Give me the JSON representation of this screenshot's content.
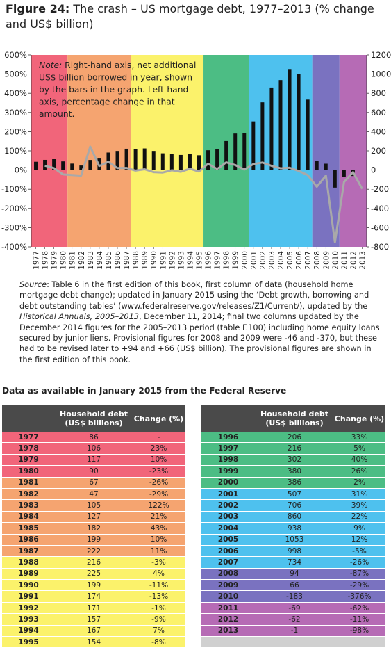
{
  "figure": {
    "label": "Figure 24:",
    "title": "The crash – US mortgage debt, 1977–2013 (% change and US$ billion)"
  },
  "chart_data": {
    "type": "bar+line",
    "categories": [
      "1977",
      "1978",
      "1979",
      "1980",
      "1981",
      "1982",
      "1983",
      "1984",
      "1985",
      "1986",
      "1987",
      "1988",
      "1989",
      "1990",
      "1991",
      "1992",
      "1993",
      "1994",
      "1995",
      "1996",
      "1997",
      "1998",
      "1999",
      "2000",
      "2001",
      "2002",
      "2003",
      "2004",
      "2005",
      "2006",
      "2007",
      "2008",
      "2009",
      "2010",
      "2011",
      "2012",
      "2013"
    ],
    "series": [
      {
        "axis": "right",
        "type": "bar",
        "color": "#111111",
        "values": [
          86,
          106,
          117,
          90,
          67,
          47,
          105,
          127,
          182,
          199,
          222,
          216,
          225,
          199,
          174,
          171,
          157,
          167,
          154,
          206,
          216,
          302,
          380,
          386,
          507,
          706,
          860,
          938,
          1053,
          998,
          734,
          94,
          66,
          -183,
          -69,
          -62,
          -1
        ]
      },
      {
        "axis": "left",
        "type": "line",
        "color": "#a9a9a9",
        "values": [
          null,
          23,
          10,
          -23,
          -26,
          -29,
          122,
          21,
          43,
          10,
          11,
          -3,
          4,
          -11,
          -13,
          -1,
          -9,
          7,
          -8,
          33,
          5,
          40,
          26,
          2,
          31,
          39,
          22,
          9,
          12,
          -5,
          -26,
          -87,
          -29,
          -376,
          -62,
          -11,
          -98
        ]
      }
    ],
    "left_axis": {
      "ylim": [
        -400,
        600
      ],
      "ticks": [
        600,
        500,
        400,
        300,
        200,
        100,
        0,
        -100,
        -200,
        -300,
        -400
      ],
      "tick_labels": [
        "600%",
        "500%",
        "400%",
        "300%",
        "200%",
        "100%",
        "0%",
        "-100%",
        "-200%",
        "-300%",
        "-400%"
      ]
    },
    "right_axis": {
      "ylim": [
        -800,
        1200
      ],
      "ticks": [
        1200,
        1000,
        800,
        600,
        400,
        200,
        0,
        -200,
        -400,
        -600,
        -800
      ],
      "tick_labels": [
        "1200",
        "1000",
        "800",
        "600",
        "400",
        "200",
        "0",
        "-200",
        "-400",
        "-600",
        "-800"
      ]
    },
    "bands": [
      {
        "from": "1977",
        "to": "1980",
        "color": "#f1657a"
      },
      {
        "from": "1981",
        "to": "1987",
        "color": "#f5a470"
      },
      {
        "from": "1988",
        "to": "1995",
        "color": "#fbf26b"
      },
      {
        "from": "1996",
        "to": "2000",
        "color": "#4cbd84"
      },
      {
        "from": "2001",
        "to": "2007",
        "color": "#4ec1ee"
      },
      {
        "from": "2008",
        "to": "2010",
        "color": "#7a72c0"
      },
      {
        "from": "2011",
        "to": "2013",
        "color": "#b66bb5"
      }
    ],
    "note": {
      "label": "Note:",
      "text": " Right-hand axis, net additional US$ billion borrowed in year, shown by the bars in the graph. Left-hand axis, percentage change in that amount."
    }
  },
  "source": {
    "label": "Source",
    "text1": ": Table 6 in the first edition of this book, first column of data (household home mortgage debt change); updated in January 2015 using the ‘Debt growth, borrowing and debt outstanding tables’ (www.federalreserve.gov/releases/Z1/Current/), updated by the ",
    "italic": "Historical Annuals, 2005–2013",
    "text2": ", December 11, 2014; final two columns updated by the December 2014 figures for the 2005–2013 period (table F.100) including home equity loans secured by junior liens. Provisional figures for 2008 and 2009 were -46 and -370, but these had to be revised later to +94 and +66 (US$ billion). The provisional figures are shown in the first edition of this book."
  },
  "tables_heading": "Data as available in January 2015 from the Federal Reserve",
  "table_headers": {
    "debt": "Household debt (US$ billions)",
    "change": "Change (%)"
  },
  "table1": [
    {
      "year": "1977",
      "debt": "86",
      "change": "-",
      "color": "#f1657a"
    },
    {
      "year": "1978",
      "debt": "106",
      "change": "23%",
      "color": "#f1657a"
    },
    {
      "year": "1979",
      "debt": "117",
      "change": "10%",
      "color": "#f1657a"
    },
    {
      "year": "1980",
      "debt": "90",
      "change": "-23%",
      "color": "#f1657a"
    },
    {
      "year": "1981",
      "debt": "67",
      "change": "-26%",
      "color": "#f5a470"
    },
    {
      "year": "1982",
      "debt": "47",
      "change": "-29%",
      "color": "#f5a470"
    },
    {
      "year": "1983",
      "debt": "105",
      "change": "122%",
      "color": "#f5a470"
    },
    {
      "year": "1984",
      "debt": "127",
      "change": "21%",
      "color": "#f5a470"
    },
    {
      "year": "1985",
      "debt": "182",
      "change": "43%",
      "color": "#f5a470"
    },
    {
      "year": "1986",
      "debt": "199",
      "change": "10%",
      "color": "#f5a470"
    },
    {
      "year": "1987",
      "debt": "222",
      "change": "11%",
      "color": "#f5a470"
    },
    {
      "year": "1988",
      "debt": "216",
      "change": "-3%",
      "color": "#fbf26b"
    },
    {
      "year": "1989",
      "debt": "225",
      "change": "4%",
      "color": "#fbf26b"
    },
    {
      "year": "1990",
      "debt": "199",
      "change": "-11%",
      "color": "#fbf26b"
    },
    {
      "year": "1991",
      "debt": "174",
      "change": "-13%",
      "color": "#fbf26b"
    },
    {
      "year": "1992",
      "debt": "171",
      "change": "-1%",
      "color": "#fbf26b"
    },
    {
      "year": "1993",
      "debt": "157",
      "change": "-9%",
      "color": "#fbf26b"
    },
    {
      "year": "1994",
      "debt": "167",
      "change": "7%",
      "color": "#fbf26b"
    },
    {
      "year": "1995",
      "debt": "154",
      "change": "-8%",
      "color": "#fbf26b"
    }
  ],
  "table2": [
    {
      "year": "1996",
      "debt": "206",
      "change": "33%",
      "color": "#4cbd84"
    },
    {
      "year": "1997",
      "debt": "216",
      "change": "5%",
      "color": "#4cbd84"
    },
    {
      "year": "1998",
      "debt": "302",
      "change": "40%",
      "color": "#4cbd84"
    },
    {
      "year": "1999",
      "debt": "380",
      "change": "26%",
      "color": "#4cbd84"
    },
    {
      "year": "2000",
      "debt": "386",
      "change": "2%",
      "color": "#4cbd84"
    },
    {
      "year": "2001",
      "debt": "507",
      "change": "31%",
      "color": "#4ec1ee"
    },
    {
      "year": "2002",
      "debt": "706",
      "change": "39%",
      "color": "#4ec1ee"
    },
    {
      "year": "2003",
      "debt": "860",
      "change": "22%",
      "color": "#4ec1ee"
    },
    {
      "year": "2004",
      "debt": "938",
      "change": "9%",
      "color": "#4ec1ee"
    },
    {
      "year": "2005",
      "debt": "1053",
      "change": "12%",
      "color": "#4ec1ee"
    },
    {
      "year": "2006",
      "debt": "998",
      "change": "-5%",
      "color": "#4ec1ee"
    },
    {
      "year": "2007",
      "debt": "734",
      "change": "-26%",
      "color": "#4ec1ee"
    },
    {
      "year": "2008",
      "debt": "94",
      "change": "-87%",
      "color": "#7a72c0"
    },
    {
      "year": "2009",
      "debt": "66",
      "change": "-29%",
      "color": "#7a72c0"
    },
    {
      "year": "2010",
      "debt": "-183",
      "change": "-376%",
      "color": "#7a72c0"
    },
    {
      "year": "2011",
      "debt": "-69",
      "change": "-62%",
      "color": "#b66bb5"
    },
    {
      "year": "2012",
      "debt": "-62",
      "change": "-11%",
      "color": "#b66bb5"
    },
    {
      "year": "2013",
      "debt": "-1",
      "change": "-98%",
      "color": "#b66bb5"
    },
    {
      "year": "",
      "debt": "",
      "change": "",
      "color": "#d0d0d0"
    }
  ]
}
